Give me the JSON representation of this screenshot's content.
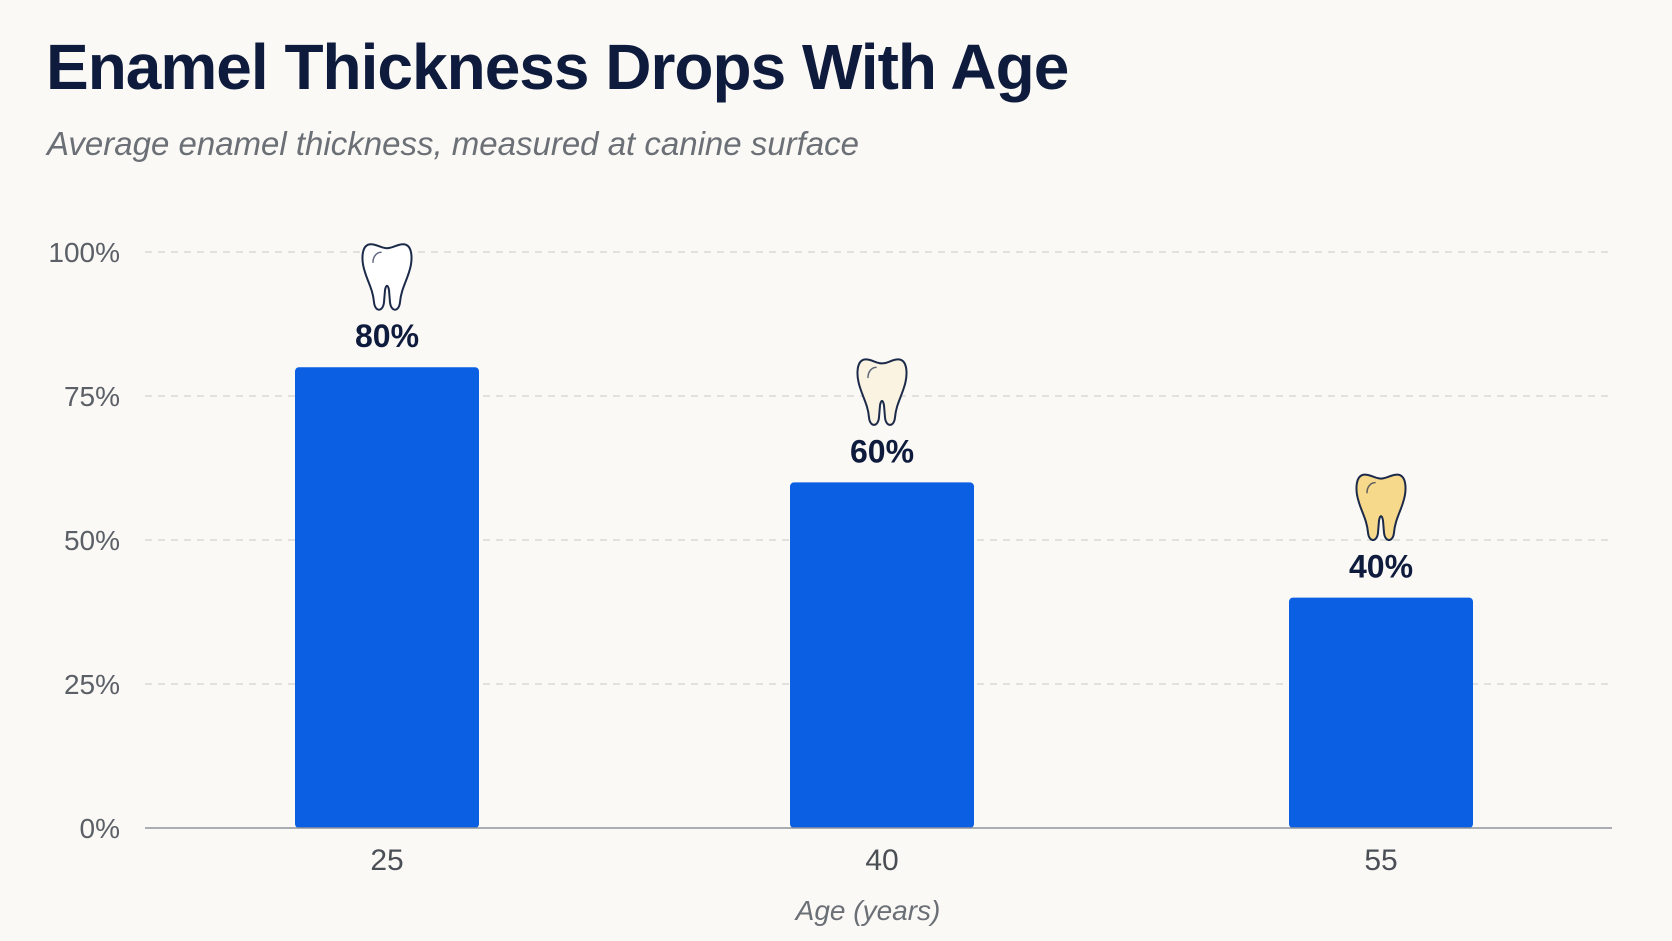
{
  "chart_data": {
    "type": "bar",
    "title": "Enamel Thickness Drops With Age",
    "subtitle": "Average enamel thickness, measured at canine surface",
    "xlabel": "Age (years)",
    "ylabel": "",
    "categories": [
      "25",
      "40",
      "55"
    ],
    "values": [
      80,
      60,
      40
    ],
    "data_labels": [
      "80%",
      "60%",
      "40%"
    ],
    "ylim": [
      0,
      100
    ],
    "yticks": [
      0,
      25,
      50,
      75,
      100
    ],
    "ytick_labels": [
      "0%",
      "25%",
      "50%",
      "75%",
      "100%"
    ],
    "grid": true,
    "bar_color": "#0b5fe3",
    "tooth_icons": [
      {
        "name": "tooth-icon",
        "fill": "#ffffff",
        "stroke": "#1c2a4a"
      },
      {
        "name": "tooth-icon",
        "fill": "#fbf3e2",
        "stroke": "#1c2a4a"
      },
      {
        "name": "tooth-icon",
        "fill": "#f7d98c",
        "stroke": "#1c2a4a"
      }
    ]
  }
}
